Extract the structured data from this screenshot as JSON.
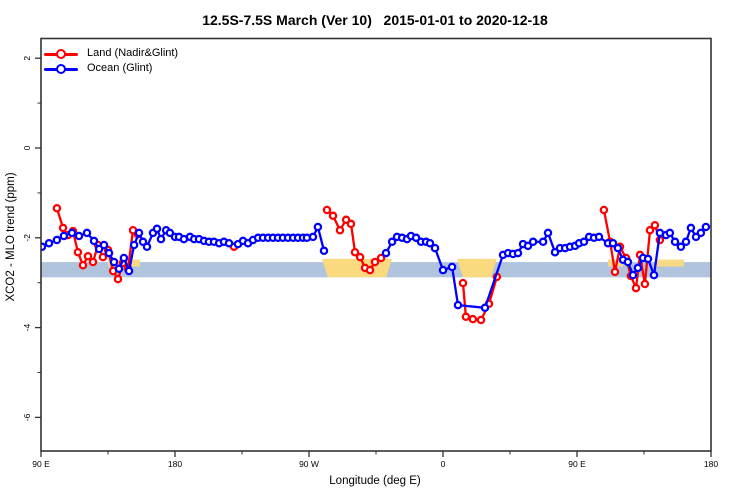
{
  "title": "12.5S-7.5S March (Ver 10)   2015-01-01 to 2020-12-18",
  "legend": {
    "items": [
      {
        "label": "Land (Nadir&Glint)",
        "color": "#ff0000",
        "icon": "circle-line-marker-icon"
      },
      {
        "label": "Ocean (Glint)",
        "color": "#0000ff",
        "icon": "circle-line-marker-icon"
      }
    ]
  },
  "chart_data": {
    "type": "line",
    "title": "12.5S-7.5S March (Ver 10)   2015-01-01 to 2020-12-18",
    "xlabel": "Longitude (deg E)",
    "ylabel": "XCO2 - MLO trend (ppm)",
    "x_axis_note": "x is longitude wrapping eastward: 90E -> 180 -> 90W -> 0 -> 90E -> 180 (450 deg span, stored as deg east of 90E)",
    "x_range": [
      0,
      450
    ],
    "ylim": [
      -6.75,
      2.45
    ],
    "x_ticks": [
      {
        "pos": 0,
        "label": "90 E"
      },
      {
        "pos": 90,
        "label": "180"
      },
      {
        "pos": 180,
        "label": "90 W"
      },
      {
        "pos": 270,
        "label": "0"
      },
      {
        "pos": 360,
        "label": "90 E"
      },
      {
        "pos": 450,
        "label": "180"
      }
    ],
    "x_minor_ticks": [
      45,
      135,
      225,
      315,
      405
    ],
    "y_ticks": [
      {
        "pos": 2,
        "label": "2"
      },
      {
        "pos": 0,
        "label": "0"
      },
      {
        "pos": -2,
        "label": "-2"
      },
      {
        "pos": -4,
        "label": "-4"
      },
      {
        "pos": -6,
        "label": "-6"
      }
    ],
    "y_minor_ticks": [
      1,
      -1,
      -3,
      -5
    ],
    "band": {
      "color": "#b0c4de",
      "y_top": -2.54,
      "y_bottom": -2.88,
      "x_range": [
        0,
        450
      ]
    },
    "highlight_patches": [
      {
        "x": [
          45,
          66.5
        ],
        "style": "thin",
        "color": "#fbd97f"
      },
      {
        "x": [
          188.7,
          235.8
        ],
        "style": "full",
        "color": "#fbd97f"
      },
      {
        "x": [
          279.4,
          306.2
        ],
        "style": "full",
        "color": "#fbd97f"
      },
      {
        "x": [
          380.8,
          390.9
        ],
        "style": "thin",
        "color": "#fbd97f"
      },
      {
        "x": [
          413.0,
          431.8
        ],
        "style": "thin",
        "color": "#fbd97f"
      }
    ],
    "series": [
      {
        "name": "Land (Nadir&Glint)",
        "color": "#ff0000",
        "segments": [
          [
            [
              10.7,
              -1.34
            ],
            [
              14.8,
              -1.78
            ],
            [
              18.1,
              -1.94
            ],
            [
              21.5,
              -1.85
            ],
            [
              24.8,
              -2.32
            ],
            [
              28.2,
              -2.61
            ],
            [
              31.6,
              -2.41
            ],
            [
              34.9,
              -2.54
            ],
            [
              38.3,
              -2.16
            ],
            [
              41.6,
              -2.43
            ],
            [
              45.0,
              -2.27
            ],
            [
              48.4,
              -2.74
            ],
            [
              51.7,
              -2.92
            ],
            [
              55.1,
              -2.56
            ],
            [
              58.4,
              -2.69
            ],
            [
              61.8,
              -1.83
            ],
            [
              65.1,
              -1.92
            ]
          ],
          [
            [
              129.6,
              -2.2
            ]
          ],
          [
            [
              192.1,
              -1.38
            ],
            [
              196.1,
              -1.51
            ],
            [
              200.8,
              -1.83
            ],
            [
              204.9,
              -1.6
            ],
            [
              208.2,
              -1.69
            ],
            [
              210.9,
              -2.32
            ],
            [
              214.3,
              -2.43
            ],
            [
              217.6,
              -2.67
            ],
            [
              221.0,
              -2.72
            ],
            [
              224.3,
              -2.54
            ],
            [
              228.4,
              -2.45
            ]
          ],
          [
            [
              283.4,
              -3.01
            ],
            [
              285.4,
              -3.76
            ],
            [
              290.1,
              -3.81
            ],
            [
              295.5,
              -3.83
            ],
            [
              300.9,
              -3.47
            ],
            [
              306.2,
              -2.87
            ]
          ],
          [
            [
              378.1,
              -1.38
            ],
            [
              382.2,
              -2.09
            ],
            [
              385.5,
              -2.76
            ],
            [
              388.9,
              -2.2
            ],
            [
              392.9,
              -2.45
            ],
            [
              396.2,
              -2.85
            ],
            [
              399.6,
              -3.12
            ],
            [
              402.3,
              -2.38
            ],
            [
              405.6,
              -3.03
            ],
            [
              409.0,
              -1.83
            ],
            [
              412.3,
              -1.72
            ],
            [
              415.7,
              -2.05
            ]
          ]
        ]
      },
      {
        "name": "Ocean (Glint)",
        "color": "#0000ff",
        "segments": [
          [
            [
              0.7,
              -2.2
            ],
            [
              5.4,
              -2.12
            ],
            [
              10.7,
              -2.05
            ],
            [
              15.4,
              -1.96
            ],
            [
              20.8,
              -1.89
            ],
            [
              25.5,
              -1.96
            ],
            [
              30.9,
              -1.89
            ],
            [
              35.6,
              -2.07
            ],
            [
              39.0,
              -2.25
            ],
            [
              42.3,
              -2.16
            ],
            [
              45.7,
              -2.34
            ],
            [
              49.0,
              -2.54
            ],
            [
              52.4,
              -2.69
            ],
            [
              55.7,
              -2.45
            ],
            [
              59.1,
              -2.74
            ],
            [
              62.5,
              -2.16
            ],
            [
              65.8,
              -1.89
            ],
            [
              68.5,
              -2.09
            ],
            [
              71.2,
              -2.2
            ],
            [
              75.2,
              -1.89
            ],
            [
              77.9,
              -1.8
            ],
            [
              80.6,
              -2.03
            ],
            [
              84.0,
              -1.83
            ],
            [
              86.6,
              -1.89
            ],
            [
              90.0,
              -1.98
            ],
            [
              92.7,
              -1.98
            ],
            [
              96.0,
              -2.03
            ],
            [
              100.1,
              -1.98
            ],
            [
              102.8,
              -2.03
            ],
            [
              106.1,
              -2.03
            ],
            [
              109.5,
              -2.07
            ],
            [
              112.8,
              -2.09
            ],
            [
              116.2,
              -2.09
            ],
            [
              119.6,
              -2.12
            ],
            [
              122.9,
              -2.09
            ],
            [
              126.3,
              -2.12
            ],
            [
              132.3,
              -2.14
            ],
            [
              135.7,
              -2.07
            ],
            [
              139.0,
              -2.12
            ],
            [
              142.4,
              -2.05
            ],
            [
              145.8,
              -2.0
            ],
            [
              149.1,
              -2.0
            ],
            [
              152.5,
              -2.0
            ],
            [
              155.8,
              -2.0
            ],
            [
              159.2,
              -2.0
            ],
            [
              162.5,
              -2.0
            ],
            [
              165.9,
              -2.0
            ],
            [
              169.3,
              -2.0
            ],
            [
              172.6,
              -2.0
            ],
            [
              176.0,
              -2.0
            ],
            [
              178.6,
              -2.0
            ],
            [
              182.7,
              -1.98
            ],
            [
              186.0,
              -1.76
            ],
            [
              190.1,
              -2.29
            ]
          ],
          [
            [
              231.7,
              -2.34
            ],
            [
              235.8,
              -2.09
            ],
            [
              239.1,
              -1.98
            ],
            [
              242.5,
              -2.0
            ],
            [
              245.8,
              -2.03
            ],
            [
              248.5,
              -1.96
            ],
            [
              251.9,
              -2.0
            ],
            [
              255.2,
              -2.09
            ],
            [
              258.6,
              -2.09
            ],
            [
              261.3,
              -2.12
            ],
            [
              264.6,
              -2.23
            ],
            [
              270.0,
              -2.72
            ],
            [
              276.1,
              -2.65
            ],
            [
              280.1,
              -3.5
            ],
            [
              298.2,
              -3.56
            ],
            [
              310.3,
              -2.38
            ],
            [
              313.7,
              -2.34
            ],
            [
              317.0,
              -2.36
            ],
            [
              320.4,
              -2.34
            ],
            [
              323.7,
              -2.14
            ],
            [
              327.1,
              -2.18
            ],
            [
              330.5,
              -2.09
            ],
            [
              337.2,
              -2.09
            ],
            [
              340.5,
              -1.89
            ],
            [
              345.2,
              -2.32
            ],
            [
              348.6,
              -2.23
            ],
            [
              352.0,
              -2.23
            ],
            [
              355.3,
              -2.2
            ],
            [
              358.7,
              -2.18
            ],
            [
              361.4,
              -2.12
            ],
            [
              364.7,
              -2.09
            ],
            [
              368.1,
              -1.98
            ],
            [
              371.4,
              -2.0
            ],
            [
              374.8,
              -1.98
            ],
            [
              380.8,
              -2.12
            ],
            [
              384.2,
              -2.12
            ],
            [
              387.5,
              -2.23
            ],
            [
              390.9,
              -2.49
            ],
            [
              394.2,
              -2.54
            ],
            [
              397.6,
              -2.83
            ],
            [
              400.9,
              -2.67
            ],
            [
              404.3,
              -2.45
            ],
            [
              407.7,
              -2.47
            ],
            [
              411.7,
              -2.83
            ],
            [
              415.7,
              -1.89
            ],
            [
              419.8,
              -1.94
            ],
            [
              422.4,
              -1.89
            ],
            [
              425.8,
              -2.09
            ],
            [
              429.8,
              -2.2
            ],
            [
              433.2,
              -2.09
            ],
            [
              436.5,
              -1.78
            ],
            [
              439.9,
              -1.98
            ],
            [
              443.2,
              -1.89
            ],
            [
              446.6,
              -1.76
            ]
          ]
        ]
      }
    ],
    "legend_position": "top-left",
    "grid": false
  }
}
